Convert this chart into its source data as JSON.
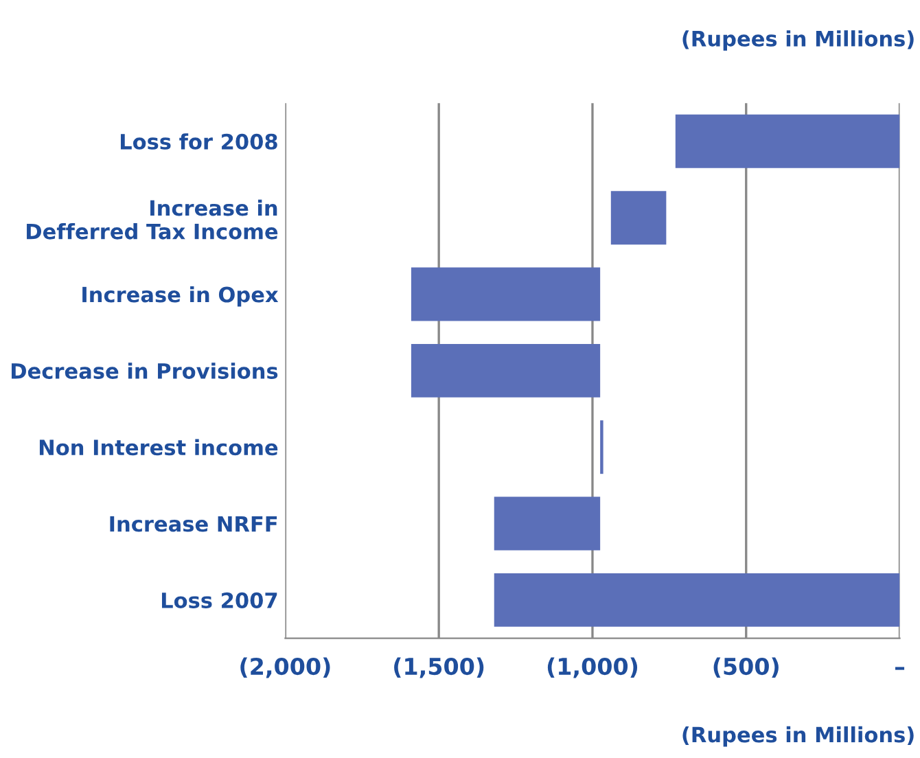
{
  "chart_data": {
    "type": "bar",
    "orientation": "horizontal",
    "categories": [
      "Loss for 2008",
      "Increase in\nDefferred Tax Income",
      "Increase in Opex",
      "Decrease in Provisions",
      "Non Interest income",
      "Increase NRFF",
      "Loss 2007"
    ],
    "base": [
      -730,
      -940,
      -1590,
      -1590,
      -975,
      -1320,
      -1320
    ],
    "values": [
      730,
      180,
      615,
      615,
      10,
      345,
      1320
    ],
    "color": "#5b6fb8",
    "xlim": [
      -2000,
      0
    ],
    "xticks": [
      {
        "value": -2000,
        "label": "(2,000)"
      },
      {
        "value": -1500,
        "label": "(1,500)"
      },
      {
        "value": -1000,
        "label": "(1,000)"
      },
      {
        "value": -500,
        "label": "(500)"
      },
      {
        "value": 0,
        "label": "–"
      }
    ],
    "grid": "x",
    "annotations": [
      "(Rupees in Millions)",
      "(Rupees in Millions)"
    ]
  }
}
